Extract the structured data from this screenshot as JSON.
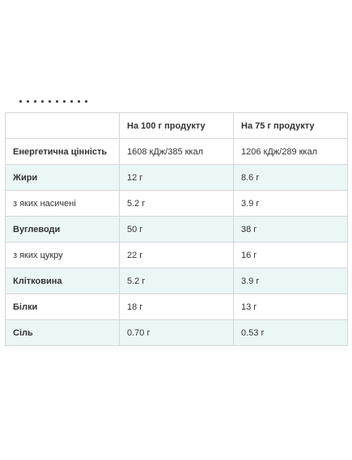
{
  "table": {
    "headers": [
      "",
      "На 100 г продукту",
      "На 75 г продукту"
    ],
    "rows": [
      {
        "label": "Енергетична цінність",
        "per100": "1608 кДж/385 ккал",
        "per75": "1206 кДж/289 ккал",
        "bold": true
      },
      {
        "label": "Жири",
        "per100": "12 г",
        "per75": "8.6 г",
        "bold": true
      },
      {
        "label": "з яких насичені",
        "per100": "5.2 г",
        "per75": "3.9 г",
        "bold": false
      },
      {
        "label": "Вуглеводи",
        "per100": "50 г",
        "per75": "38 г",
        "bold": true
      },
      {
        "label": "з яких цукру",
        "per100": "22 г",
        "per75": "16 г",
        "bold": false
      },
      {
        "label": "Клітковина",
        "per100": "5.2 г",
        "per75": "3.9 г",
        "bold": true
      },
      {
        "label": "Білки",
        "per100": "18 г",
        "per75": "13 г",
        "bold": true
      },
      {
        "label": "Сіль",
        "per100": "0.70 г",
        "per75": "0.53 г",
        "bold": true
      }
    ],
    "colors": {
      "border": "#d6d6d6",
      "stripe": "#ebf6f7",
      "text": "#333333"
    }
  }
}
